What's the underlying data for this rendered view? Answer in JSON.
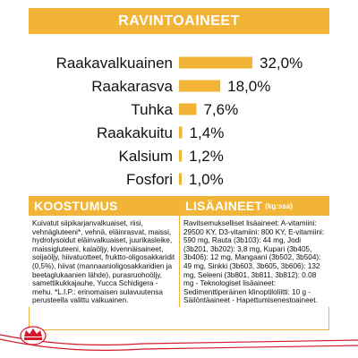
{
  "header": {
    "title": "RAVINTOAINEET"
  },
  "chart_data": {
    "type": "bar",
    "categories": [
      "Raakavalkuainen",
      "Raakarasva",
      "Tuhka",
      "Raakakuitu",
      "Kalsium",
      "Fosfori"
    ],
    "values": [
      32.0,
      18.0,
      7.6,
      1.4,
      1.2,
      1.0
    ],
    "value_labels": [
      "32,0%",
      "18,0%",
      "7,6%",
      "1,4%",
      "1,2%",
      "1,0%"
    ],
    "title": "RAVINTOAINEET",
    "xlabel": "",
    "ylabel": "",
    "xlim": [
      0,
      32
    ],
    "bar_color": "#f2b437",
    "grid": false
  },
  "composition": {
    "title": "KOOSTUMUS",
    "text": "Kuivatut siipikarjanvalkuaiset, riisi, vehnägluteeni*, vehnä, eläinrasvat, maissi, hydrolysoidut eläinvalkuaiset, juurikasleike, maissigluteeni, kalaöljy, kivennäisaineet, soijaöljy, hiivatuotteet, fruktto-oligosakkaridit (0,5%), hiivat (mannaanioligosakkaridien ja beetaglukaanien lähde), purasruohoöljy, samettikukkajauhe, Yucca Schidigera -mehu. *L.I.P.: erinomaisen sulavuutensa perusteella valittu valkuainen."
  },
  "additives": {
    "title": "LISÄAINEET",
    "title_unit": "(kg:ssa)",
    "text": "Ravitsemukselliset lisäaineet: A-vitamiini: 29500 KY, D3-vitamiini: 800 KY, E-vitamiini: 590 mg, Rauta (3b103): 44 mg, Jodi (3b201, 3b202): 3,8 mg, Kupari (3b405, 3b406): 12 mg, Mangaani (3b502, 3b504): 49 mg, Sinkki (3b603, 3b605, 3b606): 132 mg, Seleeni (3b801, 3b811, 3b812): 0.08 mg - Teknologiset lisäaineet: Sedimenttiperäinen klinoptiloliitti: 10 g - Säilöntäaineet - Hapettumisenestoaineet. RAVINTOAINEET: Raakavalkuainen: 32,0% - Raakarasva: 18,0% - Tuhka: 7,6% - Raakakuitu: 1,4% - Kalsium: 1,2% - Fosfori: 1,0%."
  },
  "colors": {
    "accent": "#f2b437",
    "brand_red": "#d2172a"
  },
  "logo": {
    "icon": "royal-canin-crown-logo"
  }
}
